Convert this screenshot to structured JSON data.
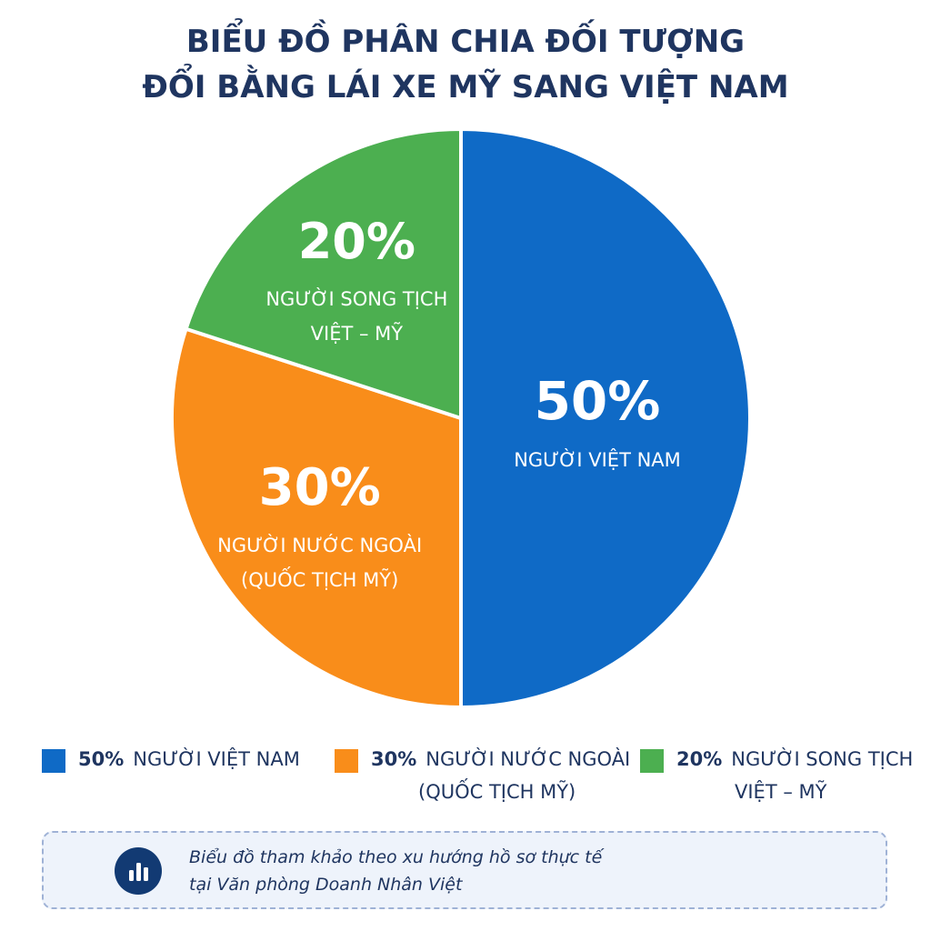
{
  "title": {
    "line1": "BIỂU ĐỒ PHÂN CHIA ĐỐI TƯỢNG",
    "line2": "ĐỔI BẰNG LÁI XE MỸ SANG VIỆT NAM"
  },
  "chart_data": {
    "type": "pie",
    "title": "BIỂU ĐỒ PHÂN CHIA ĐỐI TƯỢNG ĐỔI BẰNG LÁI XE MỸ SANG VIỆT NAM",
    "slices": [
      {
        "value": 50,
        "pct_label": "50%",
        "label_lines": [
          "NGƯỜI VIỆT NAM"
        ],
        "color": "#0f6ac6"
      },
      {
        "value": 30,
        "pct_label": "30%",
        "label_lines": [
          "NGƯỜI NƯỚC NGOÀI",
          "(QUỐC TỊCH MỸ)"
        ],
        "color": "#f98d1a"
      },
      {
        "value": 20,
        "pct_label": "20%",
        "label_lines": [
          "NGƯỜI SONG TỊCH",
          "VIỆT – MỸ"
        ],
        "color": "#4caf50"
      }
    ],
    "start_angle_deg": 0,
    "direction": "clockwise",
    "legend_position": "bottom"
  },
  "legend": [
    {
      "pct": "50%",
      "line1": "NGƯỜI VIỆT NAM",
      "line2": "",
      "color": "#0f6ac6"
    },
    {
      "pct": "30%",
      "line1": "NGƯỜI NƯỚC NGOÀI",
      "line2": "(QUỐC TỊCH MỸ)",
      "color": "#f98d1a"
    },
    {
      "pct": "20%",
      "line1": "NGƯỜI SONG TỊCH",
      "line2": "VIỆT – MỸ",
      "color": "#4caf50"
    }
  ],
  "note": {
    "line1": "Biểu đồ tham khảo theo xu hướng hồ sơ thực tế",
    "line2": "tại Văn phòng Doanh Nhân Việt",
    "icon": "bar-chart-icon",
    "accent_color": "#123a73"
  }
}
